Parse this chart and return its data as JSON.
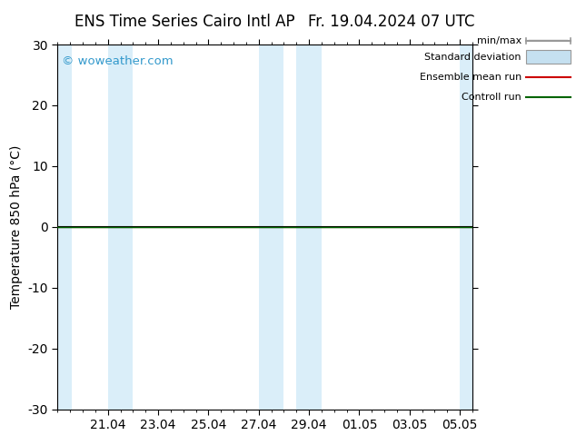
{
  "title_left": "ENS Time Series Cairo Intl AP",
  "title_right": "Fr. 19.04.2024 07 UTC",
  "ylabel": "Temperature 850 hPa (°C)",
  "watermark": "© woweather.com",
  "watermark_color": "#3399cc",
  "ylim": [
    -30,
    30
  ],
  "yticks": [
    -30,
    -20,
    -10,
    0,
    10,
    20,
    30
  ],
  "bg_color": "#ffffff",
  "plot_bg_color": "#ffffff",
  "shade_color": "#daeef9",
  "xtick_labels": [
    "21.04",
    "23.04",
    "25.04",
    "27.04",
    "29.04",
    "01.05",
    "03.05",
    "05.05"
  ],
  "zero_line_color": "#000000",
  "control_run_color": "#006400",
  "ensemble_mean_color": "#cc0000",
  "legend_minmax_color": "#999999",
  "legend_std_color": "#c5e0f0",
  "font_size": 10,
  "title_font_size": 12
}
